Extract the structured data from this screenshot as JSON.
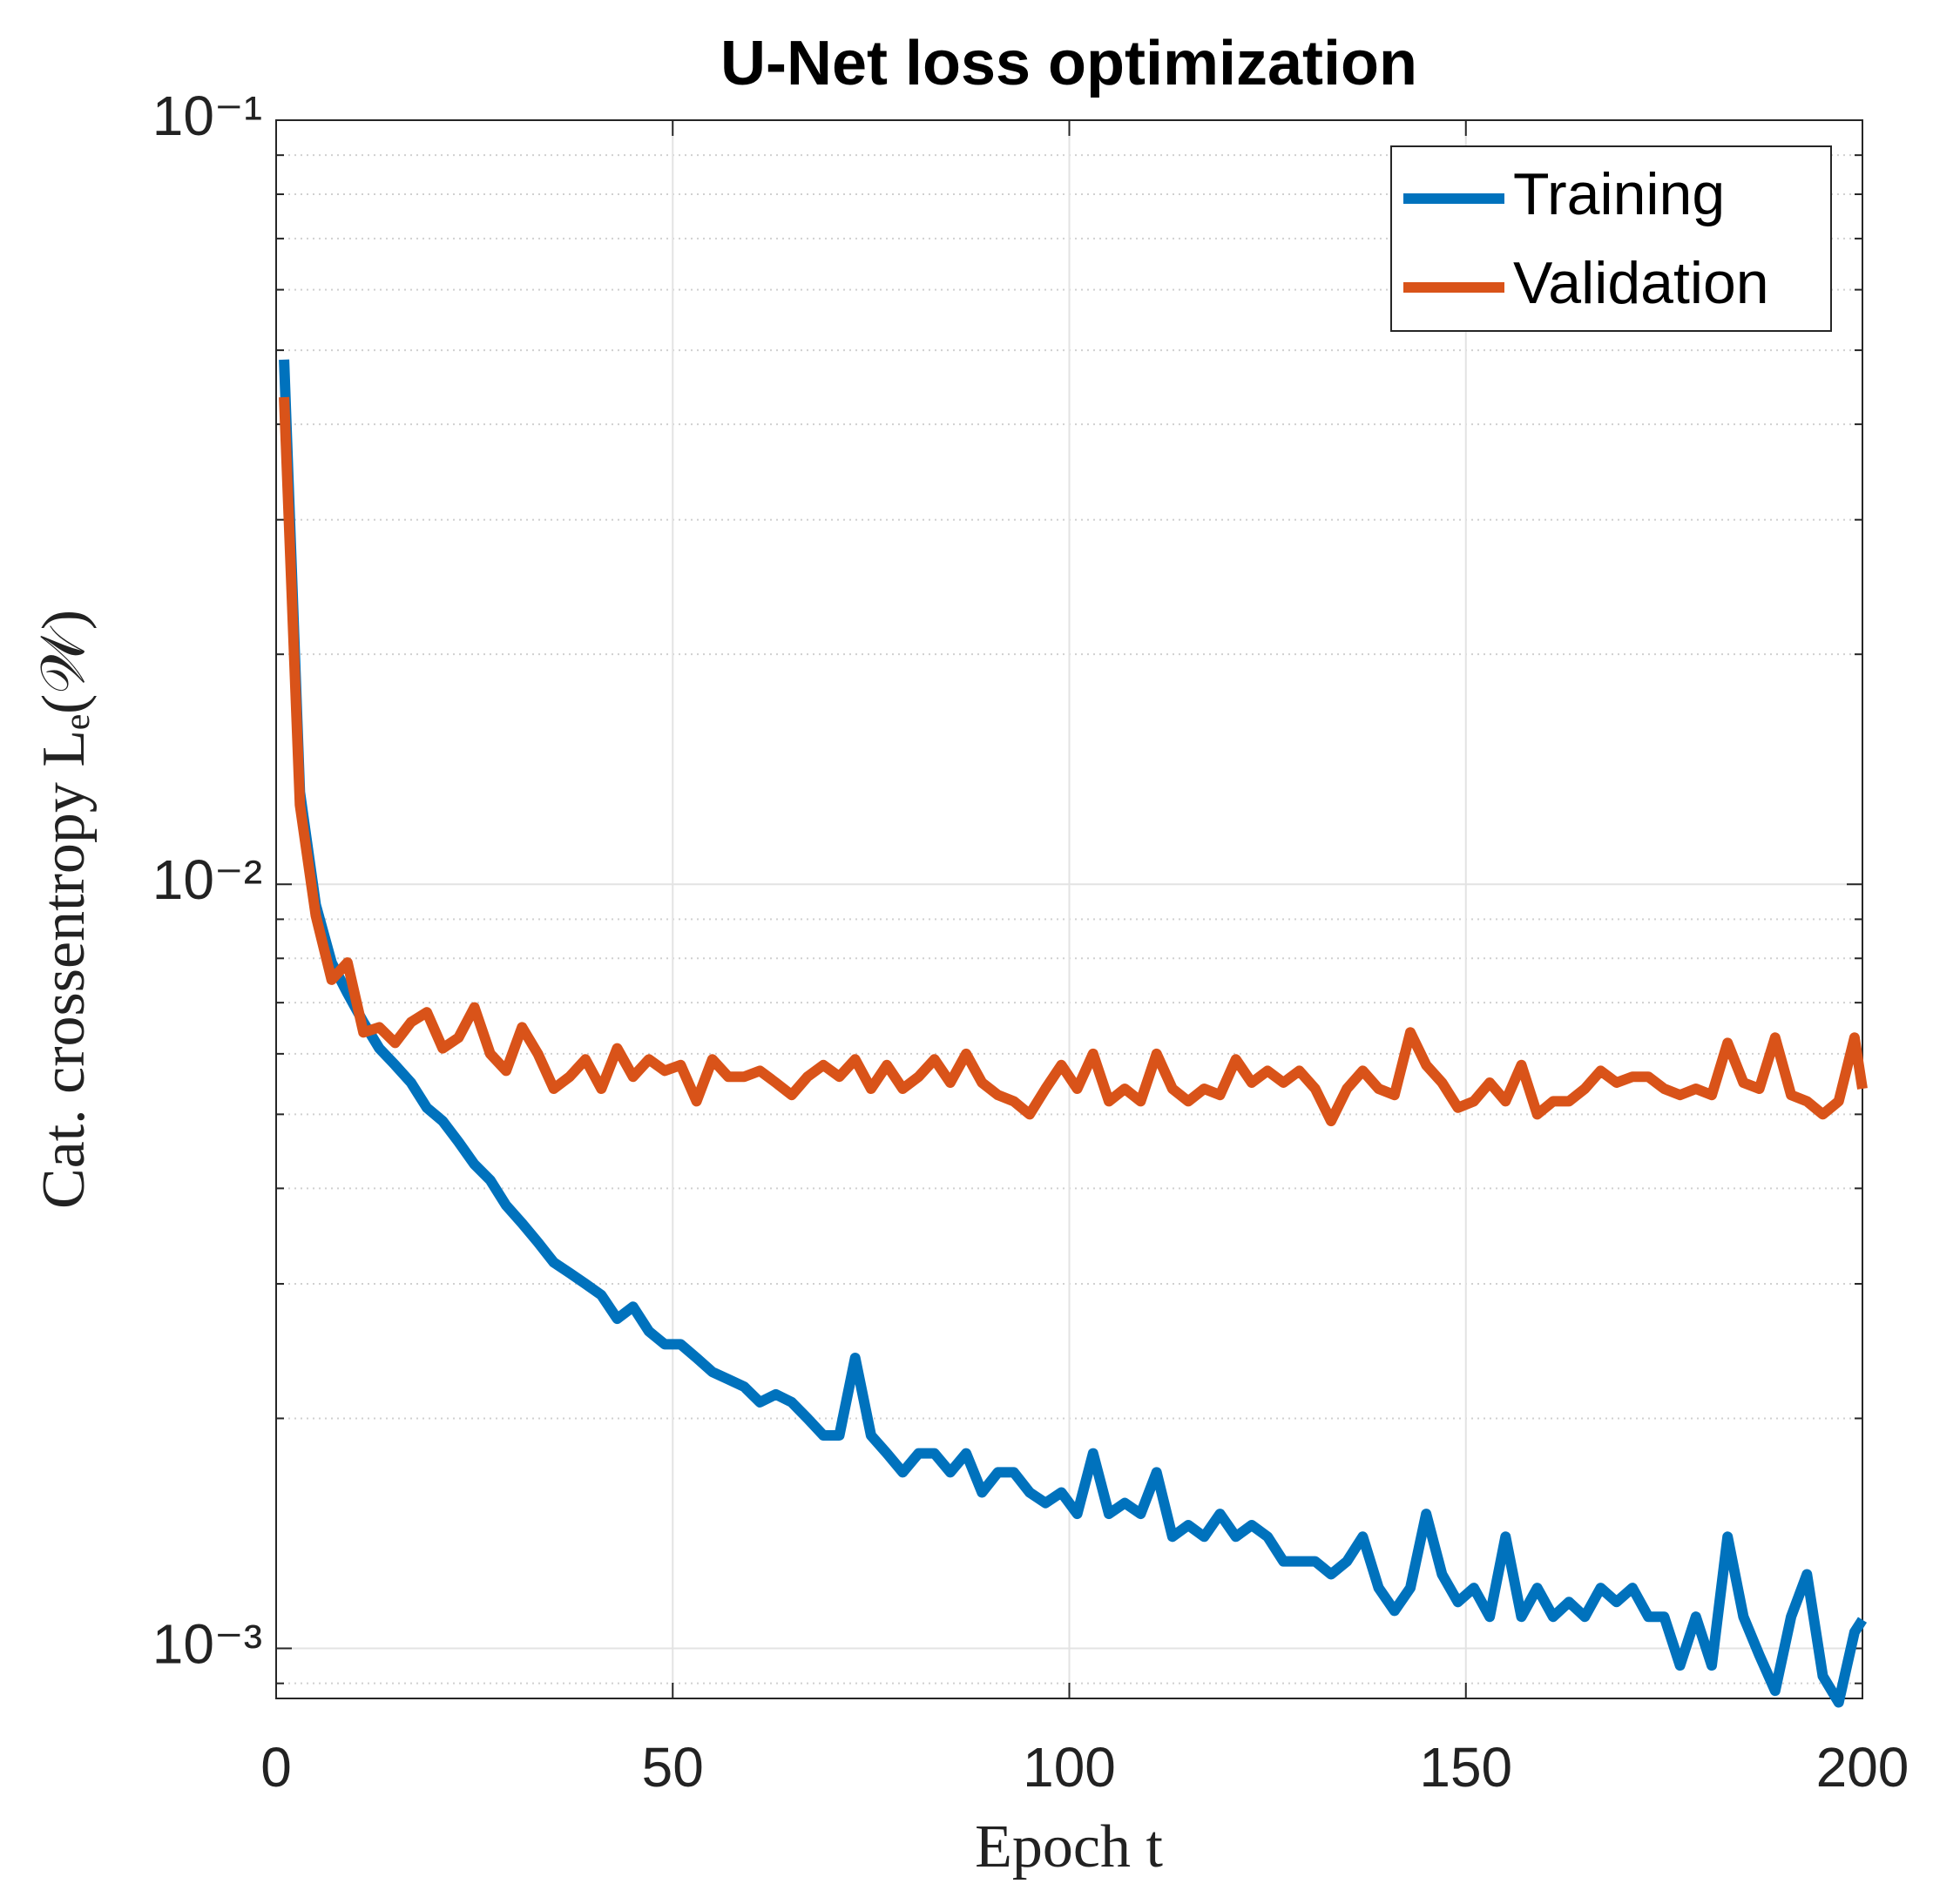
{
  "chart_data": {
    "type": "line",
    "title": "U-Net loss optimization",
    "xlabel": "Epoch t",
    "ylabel": "Cat. crossentropy Lₑ(𝒲)",
    "log_y": true,
    "grid": true,
    "legend": "upper right",
    "xlim": [
      0,
      200
    ],
    "xticks": [
      0,
      50,
      100,
      150,
      200
    ],
    "ylim": [
      0.00086,
      0.1
    ],
    "yticks": [
      {
        "value": 0.001,
        "label": "10⁻³"
      },
      {
        "value": 0.01,
        "label": "10⁻²"
      },
      {
        "value": 0.1,
        "label": "10⁻¹"
      }
    ],
    "yminorticks": [
      0.0009,
      0.002,
      0.003,
      0.004,
      0.005,
      0.006,
      0.007,
      0.008,
      0.009,
      0.02,
      0.03,
      0.04,
      0.05,
      0.06,
      0.07,
      0.08,
      0.09
    ],
    "x": [
      1,
      3,
      5,
      7,
      9,
      11,
      13,
      15,
      17,
      19,
      21,
      23,
      25,
      27,
      29,
      31,
      33,
      35,
      37,
      39,
      41,
      43,
      45,
      47,
      49,
      51,
      53,
      55,
      57,
      59,
      61,
      63,
      65,
      67,
      69,
      71,
      73,
      75,
      77,
      79,
      81,
      83,
      85,
      87,
      89,
      91,
      93,
      95,
      97,
      99,
      101,
      103,
      105,
      107,
      109,
      111,
      113,
      115,
      117,
      119,
      121,
      123,
      125,
      127,
      129,
      131,
      133,
      135,
      137,
      139,
      141,
      143,
      145,
      147,
      149,
      151,
      153,
      155,
      157,
      159,
      161,
      163,
      165,
      167,
      169,
      171,
      173,
      175,
      177,
      179,
      181,
      183,
      185,
      187,
      189,
      191,
      193,
      195,
      197,
      199,
      200
    ],
    "series": [
      {
        "name": "Training",
        "color": "#0072bd",
        "values": [
          0.0486,
          0.0132,
          0.0094,
          0.0079,
          0.0072,
          0.0066,
          0.0061,
          0.0058,
          0.0055,
          0.0051,
          0.0049,
          0.0046,
          0.0043,
          0.0041,
          0.0038,
          0.0036,
          0.0034,
          0.0032,
          0.0031,
          0.003,
          0.0029,
          0.0027,
          0.0028,
          0.0026,
          0.0025,
          0.0025,
          0.0024,
          0.0023,
          0.00225,
          0.0022,
          0.0021,
          0.00215,
          0.0021,
          0.002,
          0.0019,
          0.0019,
          0.0024,
          0.0019,
          0.0018,
          0.0017,
          0.0018,
          0.0018,
          0.0017,
          0.0018,
          0.0016,
          0.0017,
          0.0017,
          0.0016,
          0.00155,
          0.0016,
          0.0015,
          0.0018,
          0.0015,
          0.00155,
          0.0015,
          0.0017,
          0.0014,
          0.00145,
          0.0014,
          0.0015,
          0.0014,
          0.00145,
          0.0014,
          0.0013,
          0.0013,
          0.0013,
          0.00125,
          0.0013,
          0.0014,
          0.0012,
          0.00112,
          0.0012,
          0.0015,
          0.00125,
          0.00115,
          0.0012,
          0.0011,
          0.0014,
          0.0011,
          0.0012,
          0.0011,
          0.00115,
          0.0011,
          0.0012,
          0.00115,
          0.0012,
          0.0011,
          0.0011,
          0.00095,
          0.0011,
          0.00095,
          0.0014,
          0.0011,
          0.00098,
          0.00088,
          0.0011,
          0.00125,
          0.00092,
          0.00085,
          0.00105,
          0.00109
        ]
      },
      {
        "name": "Validation",
        "color": "#d95319",
        "values": [
          0.0434,
          0.0127,
          0.0091,
          0.0075,
          0.0079,
          0.0064,
          0.0065,
          0.0062,
          0.0066,
          0.0068,
          0.0061,
          0.0063,
          0.0069,
          0.006,
          0.0057,
          0.0065,
          0.006,
          0.0054,
          0.0056,
          0.0059,
          0.0054,
          0.0061,
          0.0056,
          0.0059,
          0.0057,
          0.0058,
          0.0052,
          0.0059,
          0.0056,
          0.0056,
          0.0057,
          0.0055,
          0.0053,
          0.0056,
          0.0058,
          0.0056,
          0.0059,
          0.0054,
          0.0058,
          0.0054,
          0.0056,
          0.0059,
          0.0055,
          0.006,
          0.0055,
          0.0053,
          0.0052,
          0.005,
          0.0054,
          0.0058,
          0.0054,
          0.006,
          0.0052,
          0.0054,
          0.0052,
          0.006,
          0.0054,
          0.0052,
          0.0054,
          0.0053,
          0.0059,
          0.0055,
          0.0057,
          0.0055,
          0.0057,
          0.0054,
          0.0049,
          0.0054,
          0.0057,
          0.0054,
          0.0053,
          0.0064,
          0.0058,
          0.0055,
          0.0051,
          0.0052,
          0.0055,
          0.0052,
          0.0058,
          0.005,
          0.0052,
          0.0052,
          0.0054,
          0.0057,
          0.0055,
          0.0056,
          0.0056,
          0.0054,
          0.0053,
          0.0054,
          0.0053,
          0.0062,
          0.0055,
          0.0054,
          0.0063,
          0.0053,
          0.0052,
          0.005,
          0.0052,
          0.0063,
          0.0054
        ]
      }
    ]
  }
}
